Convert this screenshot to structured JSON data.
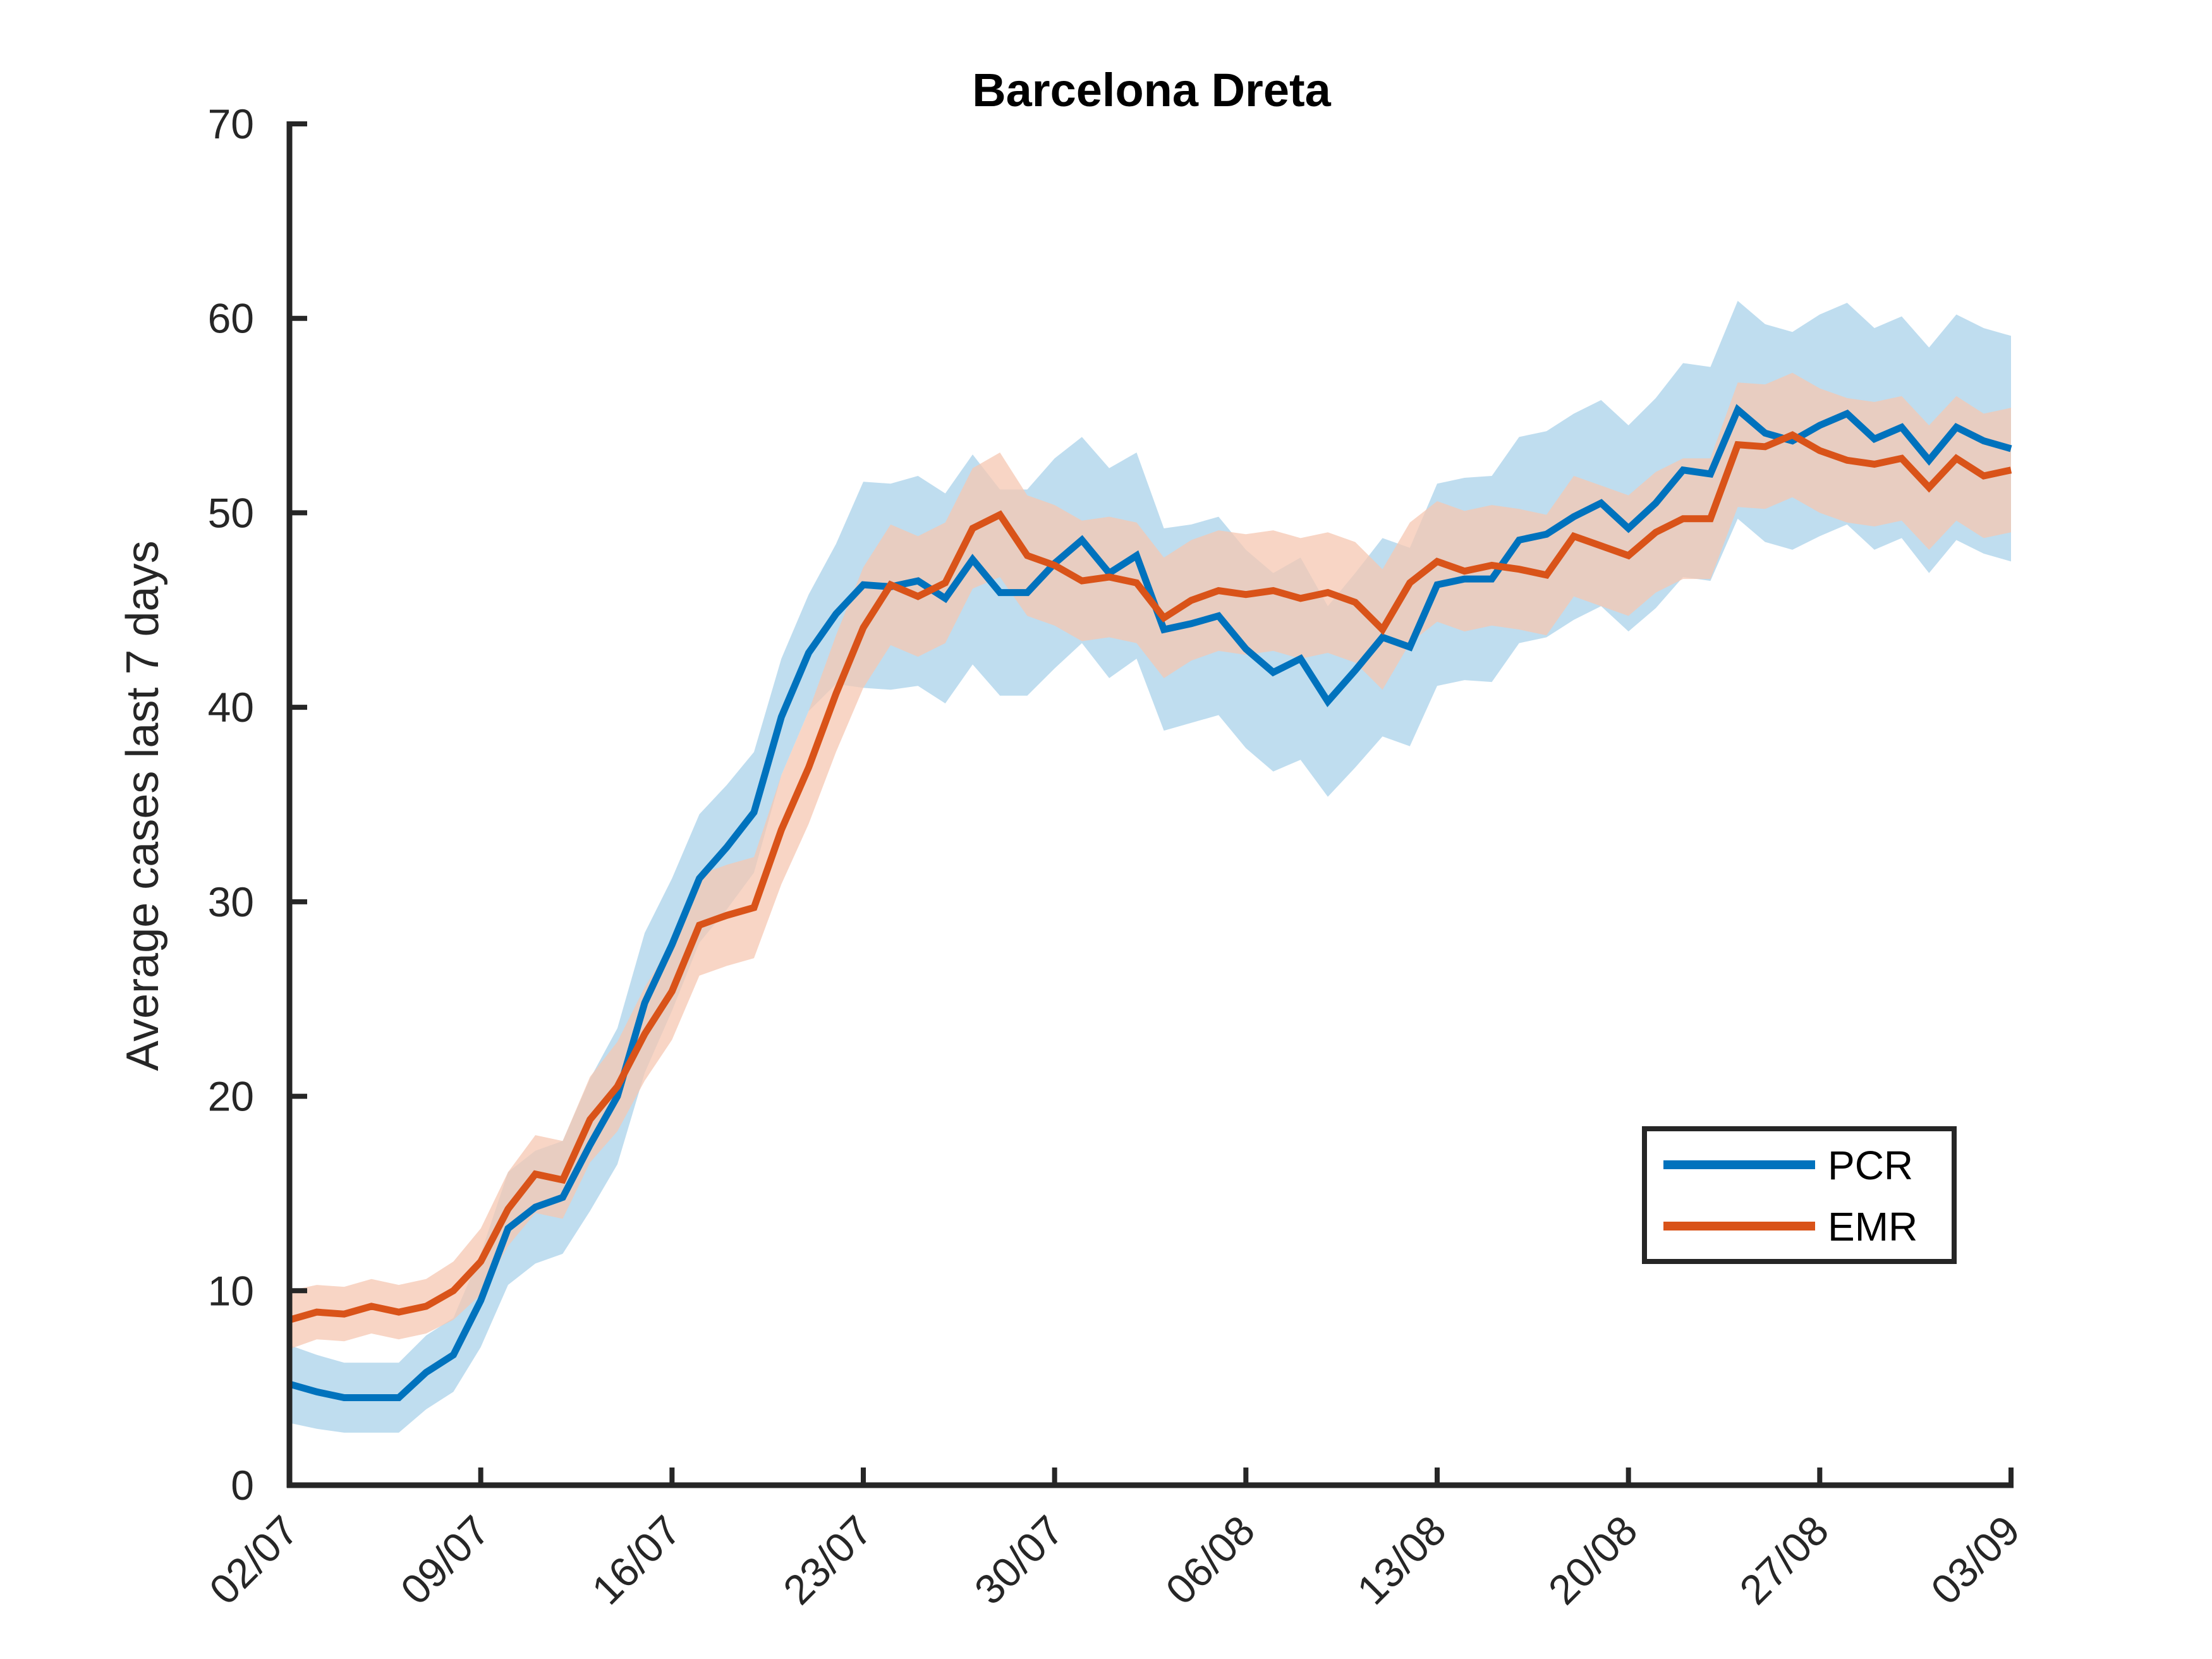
{
  "chart_data": {
    "type": "line",
    "title": "Barcelona Dreta",
    "xlabel": "",
    "ylabel": "Average cases last 7 days",
    "ylim": [
      0,
      70
    ],
    "yticks": [
      0,
      10,
      20,
      30,
      40,
      50,
      60,
      70
    ],
    "xticklabels": [
      "02/07",
      "09/07",
      "16/07",
      "23/07",
      "30/07",
      "06/08",
      "13/08",
      "20/08",
      "27/08",
      "03/09"
    ],
    "x_day_range": [
      0,
      63
    ],
    "legend_position": "lower-right",
    "grid": false,
    "series": [
      {
        "name": "PCR",
        "color": "#0072BD",
        "band_color": "#A9D1EA",
        "x": [
          0,
          1,
          2,
          3,
          4,
          5,
          6,
          7,
          8,
          9,
          10,
          11,
          12,
          13,
          14,
          15,
          16,
          17,
          18,
          19,
          20,
          21,
          22,
          23,
          24,
          25,
          26,
          27,
          28,
          29,
          30,
          31,
          32,
          33,
          34,
          35,
          36,
          37,
          38,
          39,
          40,
          41,
          42,
          43,
          44,
          45,
          46,
          47,
          48,
          49,
          50,
          51,
          52,
          53,
          54,
          55,
          56,
          57,
          58,
          59,
          60,
          61,
          62,
          63
        ],
        "values": [
          5.2,
          4.8,
          4.5,
          4.5,
          4.5,
          5.8,
          6.7,
          9.5,
          13.2,
          14.3,
          14.8,
          17.5,
          20.0,
          24.8,
          27.8,
          31.2,
          32.8,
          34.6,
          39.5,
          42.8,
          44.8,
          46.3,
          46.2,
          46.5,
          45.6,
          47.6,
          45.9,
          45.9,
          47.4,
          48.6,
          46.9,
          47.8,
          44.0,
          44.3,
          44.7,
          43.0,
          41.8,
          42.5,
          40.3,
          41.9,
          43.6,
          43.1,
          46.3,
          46.6,
          46.6,
          48.6,
          48.9,
          49.8,
          50.5,
          49.2,
          50.5,
          52.2,
          52.0,
          55.3,
          54.1,
          53.7,
          54.5,
          55.1,
          53.8,
          54.4,
          52.7,
          54.4,
          53.7,
          53.3
        ],
        "lower": [
          3.2,
          2.9,
          2.7,
          2.7,
          2.7,
          3.9,
          4.8,
          7.1,
          10.3,
          11.4,
          11.9,
          14.1,
          16.5,
          21.2,
          24.4,
          27.9,
          29.6,
          31.5,
          36.5,
          39.8,
          41.2,
          41.0,
          40.9,
          41.1,
          40.2,
          42.2,
          40.6,
          40.6,
          42.0,
          43.3,
          41.5,
          42.5,
          38.8,
          39.2,
          39.6,
          37.9,
          36.7,
          37.3,
          35.4,
          36.9,
          38.5,
          38.0,
          41.1,
          41.4,
          41.3,
          43.3,
          43.6,
          44.5,
          45.2,
          43.9,
          45.1,
          46.7,
          46.5,
          49.7,
          48.5,
          48.1,
          48.8,
          49.4,
          48.1,
          48.7,
          46.9,
          48.6,
          47.9,
          47.5
        ],
        "upper": [
          7.2,
          6.7,
          6.3,
          6.3,
          6.3,
          7.7,
          8.6,
          11.9,
          16.1,
          17.2,
          17.7,
          20.9,
          23.5,
          28.4,
          31.2,
          34.5,
          36.0,
          37.7,
          42.5,
          45.8,
          48.4,
          51.6,
          51.5,
          51.9,
          51.0,
          53.0,
          51.2,
          51.2,
          52.8,
          53.9,
          52.3,
          53.1,
          49.2,
          49.4,
          49.8,
          48.1,
          46.9,
          47.7,
          45.2,
          46.9,
          48.7,
          48.2,
          51.5,
          51.8,
          51.9,
          53.9,
          54.2,
          55.1,
          55.8,
          54.5,
          55.9,
          57.7,
          57.5,
          60.9,
          59.7,
          59.3,
          60.2,
          60.8,
          59.5,
          60.1,
          58.5,
          60.2,
          59.5,
          59.1
        ]
      },
      {
        "name": "EMR",
        "color": "#D95319",
        "band_color": "#F5C7B1",
        "x": [
          0,
          1,
          2,
          3,
          4,
          5,
          6,
          7,
          8,
          9,
          10,
          11,
          12,
          13,
          14,
          15,
          16,
          17,
          18,
          19,
          20,
          21,
          22,
          23,
          24,
          25,
          26,
          27,
          28,
          29,
          30,
          31,
          32,
          33,
          34,
          35,
          36,
          37,
          38,
          39,
          40,
          41,
          42,
          43,
          44,
          45,
          46,
          47,
          48,
          49,
          50,
          51,
          52,
          53,
          54,
          55,
          56,
          57,
          58,
          59,
          60,
          61,
          62,
          63
        ],
        "values": [
          8.5,
          8.9,
          8.8,
          9.2,
          8.9,
          9.2,
          10.0,
          11.5,
          14.2,
          16.0,
          15.7,
          18.8,
          20.5,
          23.2,
          25.4,
          28.8,
          29.3,
          29.7,
          33.7,
          36.9,
          40.7,
          44.1,
          46.3,
          45.7,
          46.4,
          49.2,
          49.9,
          47.8,
          47.3,
          46.5,
          46.7,
          46.4,
          44.6,
          45.5,
          46.0,
          45.8,
          46.0,
          45.6,
          45.9,
          45.4,
          44.0,
          46.4,
          47.5,
          47.0,
          47.3,
          47.1,
          46.8,
          48.8,
          48.3,
          47.8,
          49.0,
          49.7,
          49.7,
          53.5,
          53.4,
          54.0,
          53.2,
          52.7,
          52.5,
          52.8,
          51.3,
          52.8,
          51.9,
          52.2
        ],
        "lower": [
          7.0,
          7.5,
          7.4,
          7.8,
          7.5,
          7.8,
          8.5,
          9.8,
          12.3,
          14.0,
          13.7,
          16.6,
          18.2,
          20.8,
          22.9,
          26.2,
          26.7,
          27.1,
          30.9,
          34.0,
          37.7,
          41.0,
          43.2,
          42.6,
          43.3,
          46.1,
          46.7,
          44.7,
          44.2,
          43.4,
          43.6,
          43.3,
          41.5,
          42.4,
          42.9,
          42.7,
          42.9,
          42.5,
          42.8,
          42.3,
          40.9,
          43.3,
          44.4,
          43.9,
          44.2,
          44.0,
          43.7,
          45.7,
          45.2,
          44.7,
          45.9,
          46.6,
          46.6,
          50.3,
          50.2,
          50.8,
          50.0,
          49.5,
          49.3,
          49.6,
          48.1,
          49.6,
          48.7,
          49.0
        ],
        "upper": [
          10.0,
          10.3,
          10.2,
          10.6,
          10.3,
          10.6,
          11.5,
          13.2,
          16.1,
          18.0,
          17.7,
          21.0,
          22.8,
          25.6,
          27.9,
          31.4,
          31.9,
          32.3,
          36.5,
          39.8,
          43.7,
          47.2,
          49.4,
          48.8,
          49.5,
          52.3,
          53.1,
          50.9,
          50.4,
          49.6,
          49.8,
          49.5,
          47.7,
          48.6,
          49.1,
          48.9,
          49.1,
          48.7,
          49.0,
          48.5,
          47.1,
          49.5,
          50.6,
          50.1,
          50.4,
          50.2,
          49.9,
          51.9,
          51.4,
          50.9,
          52.1,
          52.8,
          52.8,
          56.7,
          56.6,
          57.2,
          56.4,
          55.9,
          55.7,
          56.0,
          54.5,
          56.0,
          55.1,
          55.4
        ]
      }
    ]
  }
}
